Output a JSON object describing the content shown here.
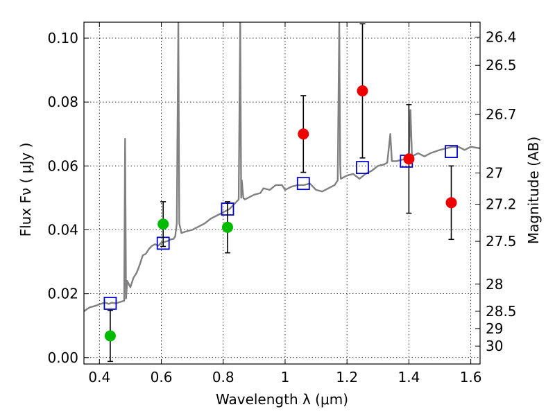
{
  "chart_data": {
    "type": "scatter",
    "xlabel": "Wavelength  λ (μm)",
    "ylabel": "Flux  Fν  ( μJy )",
    "y2label": "Magnitude (AB)",
    "xlim": [
      0.35,
      1.63
    ],
    "ylim": [
      -0.002,
      0.105
    ],
    "grid": true,
    "x_ticks": [
      0.4,
      0.6,
      0.8,
      1.0,
      1.2,
      1.4,
      1.6
    ],
    "x_tick_labels": [
      "0.4",
      "0.6",
      "0.8",
      "1",
      "1.2",
      "1.4",
      "1.6"
    ],
    "y_ticks": [
      0.0,
      0.02,
      0.04,
      0.06,
      0.08,
      0.1
    ],
    "y_tick_labels": [
      "0.00",
      "0.02",
      "0.04",
      "0.06",
      "0.08",
      "0.10"
    ],
    "y2_ticks": [
      {
        "label": "26.4",
        "flux": 0.1003
      },
      {
        "label": "26.5",
        "flux": 0.0915
      },
      {
        "label": "26.7",
        "flux": 0.0761
      },
      {
        "label": "27",
        "flux": 0.0578
      },
      {
        "label": "27.2",
        "flux": 0.048
      },
      {
        "label": "27.5",
        "flux": 0.0364
      },
      {
        "label": "28",
        "flux": 0.023
      },
      {
        "label": "28.5",
        "flux": 0.0145
      },
      {
        "label": "29",
        "flux": 0.0091
      },
      {
        "label": "30",
        "flux": 0.0036
      }
    ],
    "series": [
      {
        "kind": "model_spectrum",
        "color": "#808080",
        "points": [
          [
            0.35,
            0.0145
          ],
          [
            0.36,
            0.0152
          ],
          [
            0.37,
            0.0158
          ],
          [
            0.38,
            0.016
          ],
          [
            0.39,
            0.0163
          ],
          [
            0.4,
            0.0167
          ],
          [
            0.41,
            0.017
          ],
          [
            0.42,
            0.0172
          ],
          [
            0.43,
            0.0168
          ],
          [
            0.44,
            0.0172
          ],
          [
            0.45,
            0.017
          ],
          [
            0.46,
            0.0172
          ],
          [
            0.47,
            0.0175
          ],
          [
            0.48,
            0.0178
          ],
          [
            0.483,
            0.0685
          ],
          [
            0.486,
            0.0185
          ],
          [
            0.49,
            0.024
          ],
          [
            0.5,
            0.022
          ],
          [
            0.51,
            0.025
          ],
          [
            0.52,
            0.0265
          ],
          [
            0.53,
            0.029
          ],
          [
            0.54,
            0.032
          ],
          [
            0.55,
            0.0325
          ],
          [
            0.56,
            0.034
          ],
          [
            0.57,
            0.035
          ],
          [
            0.58,
            0.0355
          ],
          [
            0.59,
            0.035
          ],
          [
            0.6,
            0.036
          ],
          [
            0.61,
            0.0362
          ],
          [
            0.62,
            0.0365
          ],
          [
            0.63,
            0.037
          ],
          [
            0.64,
            0.0372
          ],
          [
            0.645,
            0.038
          ],
          [
            0.65,
            0.042
          ],
          [
            0.655,
            0.105
          ],
          [
            0.658,
            0.042
          ],
          [
            0.665,
            0.039
          ],
          [
            0.68,
            0.0395
          ],
          [
            0.7,
            0.04
          ],
          [
            0.72,
            0.041
          ],
          [
            0.74,
            0.042
          ],
          [
            0.76,
            0.0435
          ],
          [
            0.78,
            0.0445
          ],
          [
            0.8,
            0.0455
          ],
          [
            0.82,
            0.0465
          ],
          [
            0.84,
            0.0485
          ],
          [
            0.85,
            0.0495
          ],
          [
            0.855,
            0.105
          ],
          [
            0.858,
            0.05
          ],
          [
            0.86,
            0.0555
          ],
          [
            0.865,
            0.05
          ],
          [
            0.87,
            0.0495
          ],
          [
            0.88,
            0.05
          ],
          [
            0.9,
            0.051
          ],
          [
            0.92,
            0.0515
          ],
          [
            0.93,
            0.053
          ],
          [
            0.95,
            0.0525
          ],
          [
            0.97,
            0.054
          ],
          [
            0.99,
            0.054
          ],
          [
            1.0,
            0.0525
          ],
          [
            1.02,
            0.0535
          ],
          [
            1.04,
            0.054
          ],
          [
            1.06,
            0.054
          ],
          [
            1.08,
            0.0545
          ],
          [
            1.1,
            0.0525
          ],
          [
            1.12,
            0.052
          ],
          [
            1.14,
            0.053
          ],
          [
            1.16,
            0.054
          ],
          [
            1.17,
            0.0555
          ],
          [
            1.175,
            0.105
          ],
          [
            1.178,
            0.06
          ],
          [
            1.18,
            0.056
          ],
          [
            1.2,
            0.057
          ],
          [
            1.22,
            0.0575
          ],
          [
            1.24,
            0.056
          ],
          [
            1.26,
            0.0575
          ],
          [
            1.28,
            0.0585
          ],
          [
            1.3,
            0.06
          ],
          [
            1.32,
            0.0605
          ],
          [
            1.33,
            0.061
          ],
          [
            1.34,
            0.07
          ],
          [
            1.345,
            0.0615
          ],
          [
            1.36,
            0.0615
          ],
          [
            1.38,
            0.062
          ],
          [
            1.4,
            0.0625
          ],
          [
            1.405,
            0.0775
          ],
          [
            1.41,
            0.063
          ],
          [
            1.43,
            0.064
          ],
          [
            1.45,
            0.063
          ],
          [
            1.47,
            0.064
          ],
          [
            1.5,
            0.065
          ],
          [
            1.52,
            0.0655
          ],
          [
            1.54,
            0.066
          ],
          [
            1.56,
            0.066
          ],
          [
            1.58,
            0.065
          ],
          [
            1.6,
            0.066
          ],
          [
            1.63,
            0.0655
          ]
        ]
      },
      {
        "kind": "model_photometry",
        "marker": "open_square",
        "color": "#0000cc",
        "x": [
          0.435,
          0.606,
          0.814,
          1.059,
          1.25,
          1.392,
          1.537
        ],
        "y": [
          0.017,
          0.0358,
          0.0465,
          0.0545,
          0.0595,
          0.0615,
          0.0645
        ]
      },
      {
        "kind": "observed_optical",
        "marker": "filled_circle",
        "color": "#00bb00",
        "x": [
          0.435,
          0.606,
          0.814
        ],
        "y": [
          0.0068,
          0.0418,
          0.0408
        ],
        "yerr": [
          0.008,
          0.007,
          0.008
        ]
      },
      {
        "kind": "observed_nir",
        "marker": "filled_circle",
        "color": "#ee0000",
        "x": [
          1.059,
          1.25,
          1.4,
          1.537
        ],
        "y": [
          0.07,
          0.0835,
          0.0622,
          0.0485
        ],
        "yerr": [
          0.012,
          0.021,
          0.017,
          0.0115
        ]
      }
    ]
  }
}
